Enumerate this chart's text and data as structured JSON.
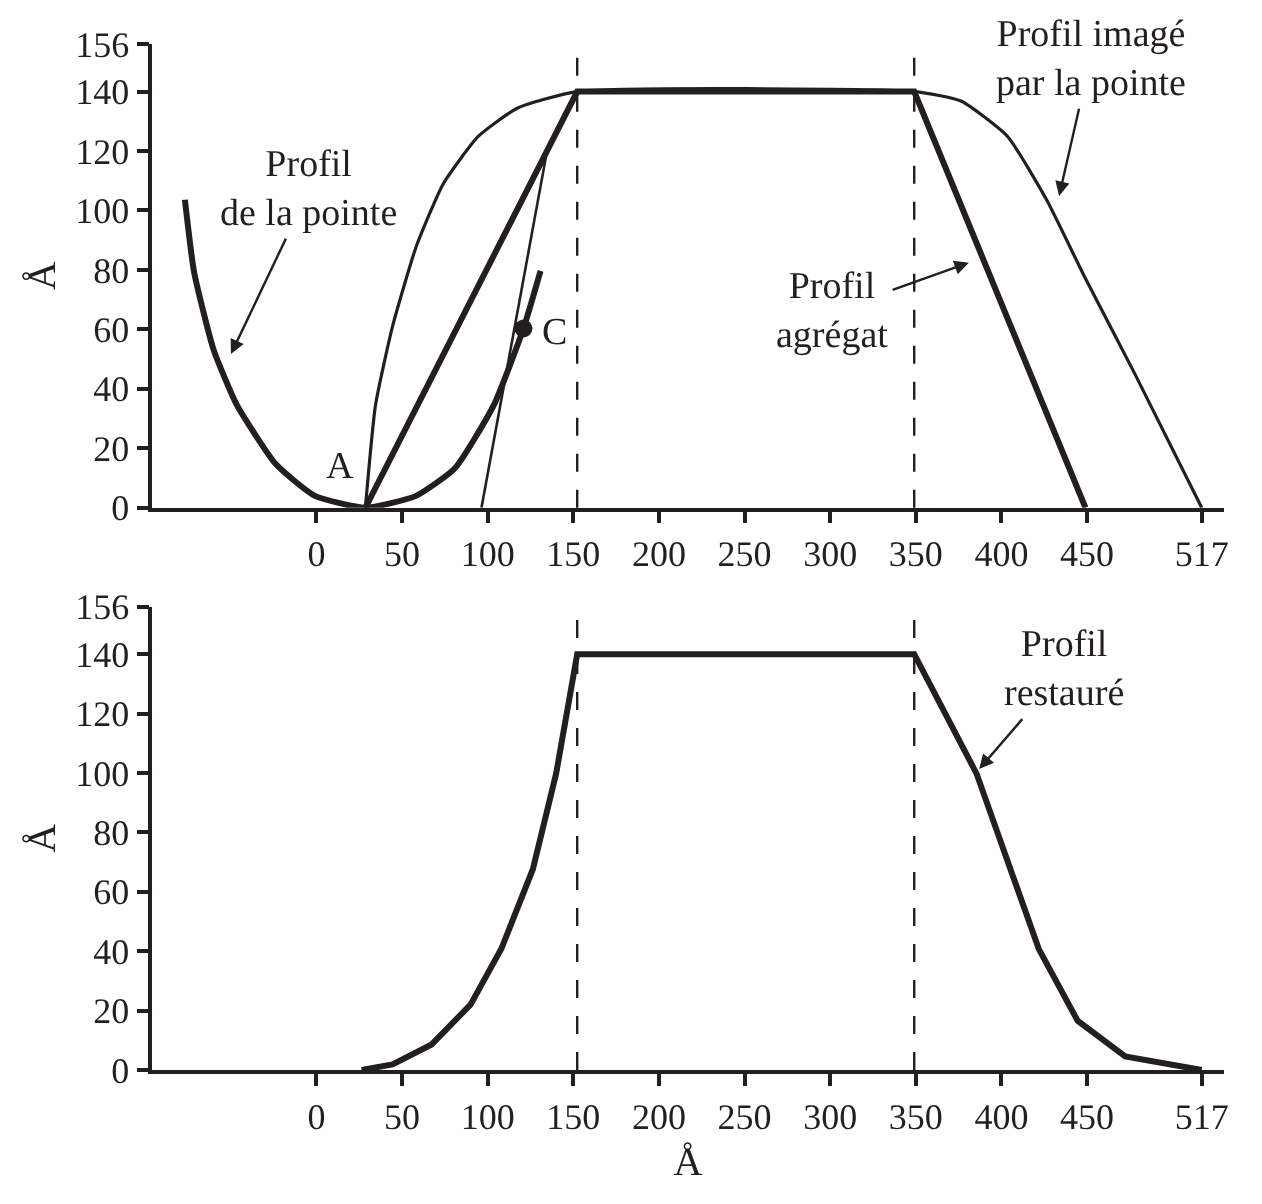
{
  "chart_data": [
    {
      "type": "line",
      "ylabel": "Å",
      "xlim": [
        -96,
        530
      ],
      "ylim": [
        0,
        156
      ],
      "xticks": [
        0,
        50,
        100,
        150,
        200,
        250,
        300,
        350,
        400,
        450,
        517
      ],
      "yticks": [
        0,
        20,
        40,
        60,
        80,
        100,
        120,
        140,
        156
      ],
      "line_style": "solid",
      "series": [
        {
          "color": "#231f20",
          "x": [
            -76.8,
            -71.4,
            -60,
            -46.4,
            -23.6,
            -0.9,
            28.6,
            58.2,
            80.9,
            103.6,
            120.9,
            130.9
          ],
          "values": [
            103.6,
            79.2,
            53.1,
            34.5,
            14.6,
            4.0,
            0,
            4.0,
            13.3,
            34.5,
            60.3,
            79.7
          ]
        },
        {
          "color": "#231f20",
          "x": [
            28.6,
            152.3,
            349.1,
            449.1
          ],
          "values": [
            0,
            140,
            140,
            0
          ]
        },
        {
          "color": "#231f20",
          "x": [
            28.6,
            34.5,
            44.5,
            58.2,
            74.1,
            94.5,
            117.3,
            152.3,
            349.1,
            376.4,
            403.6,
            426.4,
            449.1,
            477.8,
            517
          ],
          "values": [
            0,
            34.5,
            61.1,
            87.7,
            109,
            124.9,
            134.4,
            140,
            140,
            136.8,
            124.9,
            103.6,
            77.1,
            45.2,
            0
          ]
        },
        {
          "color": "#231f20",
          "x": [
            96.4,
            134.1
          ],
          "values": [
            0,
            118.2
          ]
        },
        {
          "type": "scatter",
          "marker": "circle",
          "color": "#231f20",
          "x": [
            120.9
          ],
          "values": [
            60.3
          ]
        }
      ],
      "ref_lines": [
        {
          "axis": "x",
          "value": 152.3,
          "line_style": "dashed",
          "color": "#231f20"
        },
        {
          "axis": "x",
          "value": 349.1,
          "line_style": "dashed",
          "color": "#231f20"
        }
      ],
      "annotations": [
        {
          "text": "Profil\nde la pointe",
          "x": -50.9,
          "y": 50.5
        },
        {
          "text": "Profil imagé\npar la pointe",
          "x": 433.2,
          "y": 103.6
        },
        {
          "text": "Profil\nagrégat",
          "x": 383.2,
          "y": 82.9
        },
        {
          "text": "A",
          "x": 28.6,
          "y": 0
        },
        {
          "text": "C",
          "x": 120.9,
          "y": 60.3
        }
      ]
    },
    {
      "type": "line",
      "xlabel": "Å",
      "ylabel": "Å",
      "xlim": [
        -96,
        530
      ],
      "ylim": [
        0,
        156
      ],
      "xticks": [
        0,
        50,
        100,
        150,
        200,
        250,
        300,
        350,
        400,
        450,
        517
      ],
      "yticks": [
        0,
        20,
        40,
        60,
        80,
        100,
        120,
        140,
        156
      ],
      "line_style": "solid",
      "series": [
        {
          "color": "#231f20",
          "x": [
            26.4,
            44.5,
            67.3,
            90,
            108,
            126.4,
            140,
            152.3,
            349.1,
            385.5,
            421.8,
            444.5,
            472.3,
            517
          ],
          "values": [
            0,
            1.9,
            8.6,
            22,
            40.8,
            67.6,
            99.8,
            140,
            140,
            99.8,
            40.8,
            16.6,
            4.6,
            0
          ]
        }
      ],
      "ref_lines": [
        {
          "axis": "x",
          "value": 152.3,
          "line_style": "dashed",
          "color": "#231f20"
        },
        {
          "axis": "x",
          "value": 349.1,
          "line_style": "dashed",
          "color": "#231f20"
        }
      ],
      "annotations": [
        {
          "text": "Profil\nrestauré",
          "x": 385.5,
          "y": 100.3
        }
      ]
    }
  ]
}
